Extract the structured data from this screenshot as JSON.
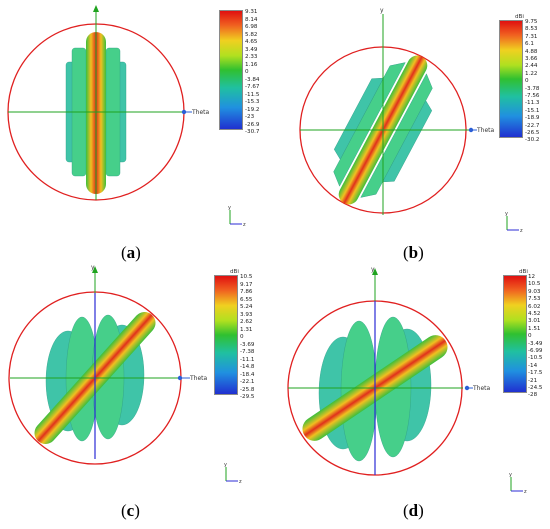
{
  "panels": [
    {
      "id": "a",
      "caption_open": "(",
      "caption_letter": "a",
      "caption_close": ")",
      "unit": "",
      "ticks": [
        "9.31",
        "8.14",
        "6.98",
        "5.82",
        "4.65",
        "3.49",
        "2.33",
        "1.16",
        "0",
        "-3.84",
        "-7.67",
        "-11.5",
        "-15.3",
        "-19.2",
        "-23",
        "-26.9",
        "-30.7"
      ],
      "y_axis_label": "",
      "theta_label": "Theta",
      "triad": {
        "y": "y",
        "x": "z"
      }
    },
    {
      "id": "b",
      "caption_open": "(",
      "caption_letter": "b",
      "caption_close": ")",
      "unit": "dBi",
      "ticks": [
        "9.75",
        "8.53",
        "7.31",
        "6.1",
        "4.88",
        "3.66",
        "2.44",
        "1.22",
        "0",
        "-3.78",
        "-7.56",
        "-11.3",
        "-15.1",
        "-18.9",
        "-22.7",
        "-26.5",
        "-30.2"
      ],
      "y_axis_label": "y",
      "theta_label": "Theta",
      "triad": {
        "y": "y",
        "x": "z"
      }
    },
    {
      "id": "c",
      "caption_open": "(",
      "caption_letter": "c",
      "caption_close": ")",
      "unit": "dBi",
      "ticks": [
        "10.5",
        "9.17",
        "7.86",
        "6.55",
        "5.24",
        "3.93",
        "2.62",
        "1.31",
        "0",
        "-3.69",
        "-7.38",
        "-11.1",
        "-14.8",
        "-18.4",
        "-22.1",
        "-25.8",
        "-29.5"
      ],
      "y_axis_label": "y",
      "theta_label": "Theta",
      "triad": {
        "y": "y",
        "x": "z"
      }
    },
    {
      "id": "d",
      "caption_open": "(",
      "caption_letter": "d",
      "caption_close": ")",
      "unit": "dBi",
      "ticks": [
        "12",
        "10.5",
        "9.03",
        "7.53",
        "6.02",
        "4.52",
        "3.01",
        "1.51",
        "0",
        "-3.49",
        "-6.99",
        "-10.5",
        "-14",
        "-17.5",
        "-21",
        "-24.5",
        "-28"
      ],
      "y_axis_label": "y",
      "theta_label": "Theta",
      "triad": {
        "y": "y",
        "x": "z"
      }
    }
  ],
  "colors": {
    "circle": "#e02020",
    "axis_green": "#1fa31f",
    "axis_blue": "#2b2bd6",
    "lobe_core": "#e0301c",
    "lobe_mid": "#f0c020",
    "lobe_edge": "#3cbf3c",
    "side_lobe": "#3fc4a8"
  }
}
